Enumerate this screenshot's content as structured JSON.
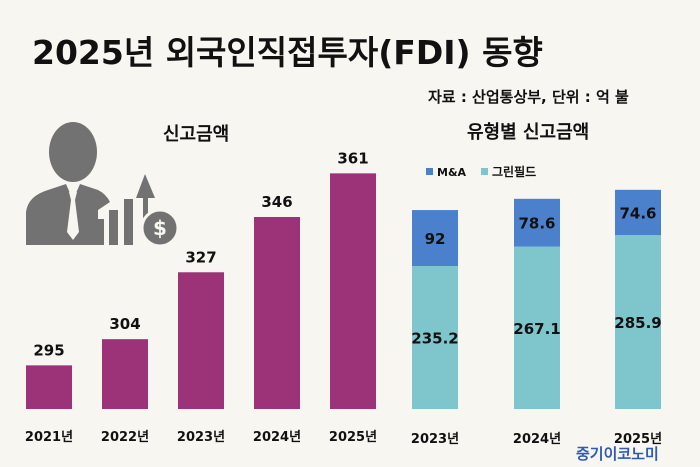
{
  "title": "2025년 외국인직접투자(FDI) 동향",
  "source": "자료 : 산업통상부, 단위 : 억 불",
  "watermark": "중기이코노미",
  "colors": {
    "total": "#9c3278",
    "ma": "#4a80cc",
    "greenfield": "#7ec6cc",
    "icon": "#727272",
    "watermark": "#2f5bb0"
  },
  "chart_data": [
    {
      "type": "bar",
      "title": "신고금액",
      "categories": [
        "2021년",
        "2022년",
        "2023년",
        "2024년",
        "2025년"
      ],
      "values": [
        295,
        304,
        327,
        346,
        361
      ],
      "ylim": [
        280,
        370
      ],
      "xlabel": "",
      "ylabel": ""
    },
    {
      "type": "bar",
      "stacked": true,
      "title": "유형별 신고금액",
      "categories": [
        "2023년",
        "2024년",
        "2025년"
      ],
      "series": [
        {
          "name": "그린필드",
          "values": [
            235.2,
            267.1,
            285.9
          ]
        },
        {
          "name": "M&A",
          "values": [
            92,
            78.6,
            74.6
          ]
        }
      ],
      "legend": "top-left",
      "ylim": [
        0,
        380
      ]
    }
  ]
}
